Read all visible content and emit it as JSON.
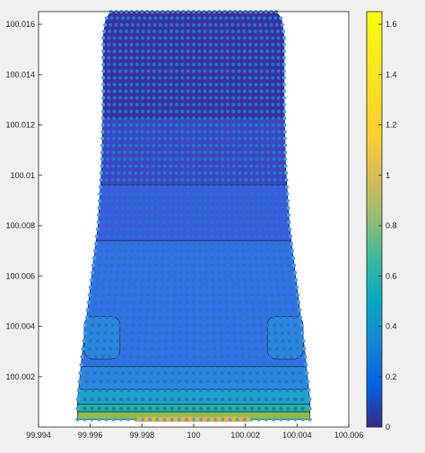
{
  "chart_data": {
    "type": "heatmap",
    "subtype": "filled-contour-with-mesh-nodes",
    "title": "",
    "xlabel": "",
    "ylabel": "",
    "xlim": [
      99.994,
      100.006
    ],
    "ylim": [
      100.0,
      100.0165
    ],
    "x_ticks": [
      99.994,
      99.996,
      99.998,
      100,
      100.002,
      100.004,
      100.006
    ],
    "x_tick_labels": [
      "99.994",
      "99.996",
      "99.998",
      "100",
      "100.002",
      "100.004",
      "100.006"
    ],
    "y_ticks": [
      100.002,
      100.004,
      100.006,
      100.008,
      100.01,
      100.012,
      100.014,
      100.016
    ],
    "y_tick_labels": [
      "100.002",
      "100.004",
      "100.006",
      "100.008",
      "100.01",
      "100.012",
      "100.014",
      "100.016"
    ],
    "colorbar": {
      "limits": [
        0,
        1.65
      ],
      "ticks": [
        0,
        0.2,
        0.4,
        0.6,
        0.8,
        1,
        1.2,
        1.4,
        1.6
      ],
      "tick_labels": [
        "0",
        "0.2",
        "0.4",
        "0.6",
        "0.8",
        "1",
        "1.2",
        "1.4",
        "1.6"
      ],
      "colormap": "parula"
    },
    "outline": {
      "x": [
        99.9955,
        99.9955,
        99.9957,
        99.996,
        99.9963,
        99.99645,
        99.9965,
        99.9965,
        99.9966,
        99.9968,
        100.0032,
        100.0034,
        100.0035,
        100.0035,
        100.00355,
        100.0037,
        100.004,
        100.0043,
        100.0045,
        100.0045
      ],
      "y": [
        100.0003,
        100.001,
        100.003,
        100.0055,
        100.008,
        100.0105,
        100.013,
        100.0155,
        100.0162,
        100.0165,
        100.0165,
        100.0162,
        100.0155,
        100.013,
        100.0105,
        100.008,
        100.0055,
        100.003,
        100.001,
        100.0003
      ]
    },
    "contour_bands": [
      {
        "y_from": 100.0123,
        "y_to": 100.0165,
        "level": 0.12,
        "color": "#3b2fa3"
      },
      {
        "y_from": 100.0096,
        "y_to": 100.0123,
        "level": 0.26,
        "color": "#3c45c5"
      },
      {
        "y_from": 100.0074,
        "y_to": 100.0096,
        "level": 0.34,
        "color": "#3d5ae0"
      },
      {
        "y_from": 100.0024,
        "y_to": 100.0074,
        "level": 0.42,
        "color": "#3470e8"
      },
      {
        "y_from": 100.0015,
        "y_to": 100.0024,
        "level": 0.5,
        "color": "#2d86dd"
      },
      {
        "y_from": 100.0009,
        "y_to": 100.0015,
        "level": 0.62,
        "color": "#1fa1c9"
      },
      {
        "y_from": 100.0006,
        "y_to": 100.0009,
        "level": 0.78,
        "color": "#23b39a"
      },
      {
        "y_from": 100.0003,
        "y_to": 100.0006,
        "level": 1.0,
        "color": "#8cbc4f"
      }
    ],
    "side_patches": [
      {
        "x_center": 99.99715,
        "y_from": 100.0027,
        "y_to": 100.0044,
        "level": 0.5,
        "color": "#2d86dd"
      },
      {
        "x_center": 100.00285,
        "y_from": 100.0027,
        "y_to": 100.0044,
        "level": 0.5,
        "color": "#2d86dd"
      }
    ],
    "hotspots": [
      {
        "x_from": 99.9978,
        "x_to": 100.0022,
        "y_from": 100.0002,
        "y_to": 100.0004,
        "level": 1.45,
        "color": "#f0b33a"
      }
    ],
    "mesh": {
      "columns": 33,
      "rows": 57,
      "marker_color": "#1f78c4",
      "boundary_marker_color": "#4aa3e0"
    }
  }
}
